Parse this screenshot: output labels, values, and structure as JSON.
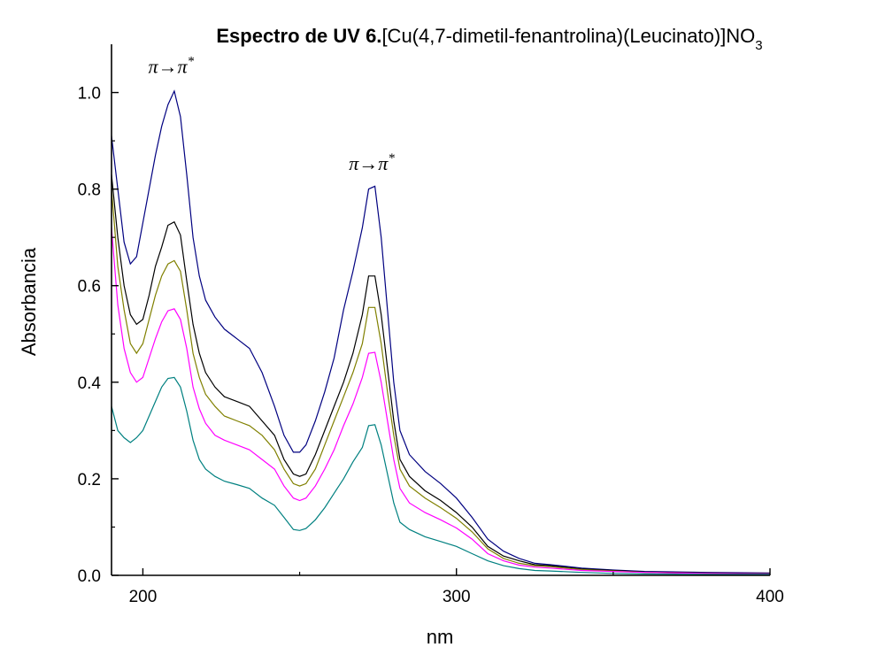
{
  "chart_data": {
    "type": "line",
    "title_bold": "Espectro de UV 6.",
    "title_rest": "[Cu(4,7-dimetil-fenantrolina)(Leucinato)]NO",
    "title_subscript": "3",
    "xlabel": "nm",
    "ylabel": "Absorbancia",
    "xlim": [
      190,
      400
    ],
    "ylim": [
      0,
      1.1
    ],
    "x_ticks": [
      200,
      300,
      400
    ],
    "y_ticks": [
      0.0,
      0.2,
      0.4,
      0.6,
      0.8,
      1.0
    ],
    "x_tick_labels": [
      "200",
      "300",
      "400"
    ],
    "y_tick_labels": [
      "0.0",
      "0.2",
      "0.4",
      "0.6",
      "0.8",
      "1.0"
    ],
    "grid": false,
    "annotations": [
      {
        "base": "π→π",
        "sup": "*",
        "x": 209,
        "y": 1.04
      },
      {
        "base": "π→π",
        "sup": "*",
        "x": 273,
        "y": 0.84
      }
    ],
    "series": [
      {
        "color": "#000080",
        "points": [
          [
            190,
            0.91
          ],
          [
            192,
            0.8
          ],
          [
            194,
            0.69
          ],
          [
            196,
            0.645
          ],
          [
            198,
            0.66
          ],
          [
            200,
            0.73
          ],
          [
            202,
            0.8
          ],
          [
            204,
            0.87
          ],
          [
            206,
            0.93
          ],
          [
            208,
            0.975
          ],
          [
            210,
            1.003
          ],
          [
            212,
            0.95
          ],
          [
            214,
            0.83
          ],
          [
            216,
            0.7
          ],
          [
            218,
            0.62
          ],
          [
            220,
            0.57
          ],
          [
            223,
            0.535
          ],
          [
            226,
            0.51
          ],
          [
            230,
            0.49
          ],
          [
            234,
            0.47
          ],
          [
            238,
            0.42
          ],
          [
            242,
            0.35
          ],
          [
            245,
            0.29
          ],
          [
            248,
            0.255
          ],
          [
            250,
            0.255
          ],
          [
            252,
            0.27
          ],
          [
            255,
            0.32
          ],
          [
            258,
            0.38
          ],
          [
            261,
            0.45
          ],
          [
            264,
            0.55
          ],
          [
            267,
            0.63
          ],
          [
            270,
            0.72
          ],
          [
            272,
            0.8
          ],
          [
            274,
            0.806
          ],
          [
            276,
            0.7
          ],
          [
            278,
            0.55
          ],
          [
            280,
            0.4
          ],
          [
            282,
            0.3
          ],
          [
            285,
            0.25
          ],
          [
            290,
            0.215
          ],
          [
            295,
            0.19
          ],
          [
            300,
            0.16
          ],
          [
            305,
            0.12
          ],
          [
            310,
            0.075
          ],
          [
            315,
            0.05
          ],
          [
            320,
            0.035
          ],
          [
            325,
            0.025
          ],
          [
            330,
            0.022
          ],
          [
            340,
            0.015
          ],
          [
            350,
            0.011
          ],
          [
            360,
            0.008
          ],
          [
            380,
            0.006
          ],
          [
            400,
            0.005
          ]
        ]
      },
      {
        "color": "#000000",
        "points": [
          [
            190,
            0.83
          ],
          [
            192,
            0.7
          ],
          [
            194,
            0.6
          ],
          [
            196,
            0.54
          ],
          [
            198,
            0.52
          ],
          [
            200,
            0.53
          ],
          [
            202,
            0.58
          ],
          [
            204,
            0.64
          ],
          [
            206,
            0.68
          ],
          [
            208,
            0.725
          ],
          [
            210,
            0.732
          ],
          [
            212,
            0.705
          ],
          [
            214,
            0.61
          ],
          [
            216,
            0.52
          ],
          [
            218,
            0.46
          ],
          [
            220,
            0.42
          ],
          [
            223,
            0.39
          ],
          [
            226,
            0.37
          ],
          [
            230,
            0.36
          ],
          [
            234,
            0.35
          ],
          [
            238,
            0.32
          ],
          [
            242,
            0.29
          ],
          [
            245,
            0.24
          ],
          [
            248,
            0.21
          ],
          [
            250,
            0.205
          ],
          [
            252,
            0.21
          ],
          [
            255,
            0.25
          ],
          [
            258,
            0.3
          ],
          [
            261,
            0.35
          ],
          [
            264,
            0.4
          ],
          [
            267,
            0.46
          ],
          [
            270,
            0.54
          ],
          [
            272,
            0.62
          ],
          [
            274,
            0.62
          ],
          [
            276,
            0.54
          ],
          [
            278,
            0.43
          ],
          [
            280,
            0.32
          ],
          [
            282,
            0.24
          ],
          [
            285,
            0.205
          ],
          [
            290,
            0.175
          ],
          [
            295,
            0.155
          ],
          [
            300,
            0.13
          ],
          [
            305,
            0.1
          ],
          [
            310,
            0.06
          ],
          [
            315,
            0.04
          ],
          [
            320,
            0.03
          ],
          [
            325,
            0.022
          ],
          [
            330,
            0.02
          ],
          [
            340,
            0.013
          ],
          [
            350,
            0.01
          ],
          [
            360,
            0.007
          ],
          [
            380,
            0.005
          ],
          [
            400,
            0.004
          ]
        ]
      },
      {
        "color": "#808000",
        "points": [
          [
            190,
            0.8
          ],
          [
            192,
            0.64
          ],
          [
            194,
            0.55
          ],
          [
            196,
            0.48
          ],
          [
            198,
            0.46
          ],
          [
            200,
            0.48
          ],
          [
            202,
            0.53
          ],
          [
            204,
            0.58
          ],
          [
            206,
            0.62
          ],
          [
            208,
            0.645
          ],
          [
            210,
            0.652
          ],
          [
            212,
            0.63
          ],
          [
            214,
            0.55
          ],
          [
            216,
            0.46
          ],
          [
            218,
            0.41
          ],
          [
            220,
            0.375
          ],
          [
            223,
            0.35
          ],
          [
            226,
            0.33
          ],
          [
            230,
            0.32
          ],
          [
            234,
            0.31
          ],
          [
            238,
            0.29
          ],
          [
            242,
            0.26
          ],
          [
            245,
            0.22
          ],
          [
            248,
            0.19
          ],
          [
            250,
            0.185
          ],
          [
            252,
            0.19
          ],
          [
            255,
            0.22
          ],
          [
            258,
            0.27
          ],
          [
            261,
            0.32
          ],
          [
            264,
            0.37
          ],
          [
            267,
            0.42
          ],
          [
            270,
            0.48
          ],
          [
            272,
            0.555
          ],
          [
            274,
            0.555
          ],
          [
            276,
            0.48
          ],
          [
            278,
            0.38
          ],
          [
            280,
            0.29
          ],
          [
            282,
            0.22
          ],
          [
            285,
            0.185
          ],
          [
            290,
            0.16
          ],
          [
            295,
            0.14
          ],
          [
            300,
            0.118
          ],
          [
            305,
            0.09
          ],
          [
            310,
            0.055
          ],
          [
            315,
            0.035
          ],
          [
            320,
            0.025
          ],
          [
            325,
            0.02
          ],
          [
            330,
            0.018
          ],
          [
            340,
            0.012
          ],
          [
            350,
            0.009
          ],
          [
            360,
            0.006
          ],
          [
            380,
            0.004
          ],
          [
            400,
            0.003
          ]
        ]
      },
      {
        "color": "#ff00ff",
        "points": [
          [
            190,
            0.72
          ],
          [
            192,
            0.56
          ],
          [
            194,
            0.47
          ],
          [
            196,
            0.42
          ],
          [
            198,
            0.4
          ],
          [
            200,
            0.41
          ],
          [
            202,
            0.45
          ],
          [
            204,
            0.49
          ],
          [
            206,
            0.525
          ],
          [
            208,
            0.548
          ],
          [
            210,
            0.552
          ],
          [
            212,
            0.53
          ],
          [
            214,
            0.47
          ],
          [
            216,
            0.39
          ],
          [
            218,
            0.345
          ],
          [
            220,
            0.315
          ],
          [
            223,
            0.29
          ],
          [
            226,
            0.28
          ],
          [
            230,
            0.27
          ],
          [
            234,
            0.26
          ],
          [
            238,
            0.24
          ],
          [
            242,
            0.22
          ],
          [
            245,
            0.185
          ],
          [
            248,
            0.16
          ],
          [
            250,
            0.155
          ],
          [
            252,
            0.16
          ],
          [
            255,
            0.185
          ],
          [
            258,
            0.22
          ],
          [
            261,
            0.26
          ],
          [
            264,
            0.31
          ],
          [
            267,
            0.355
          ],
          [
            270,
            0.41
          ],
          [
            272,
            0.46
          ],
          [
            274,
            0.462
          ],
          [
            276,
            0.4
          ],
          [
            278,
            0.32
          ],
          [
            280,
            0.24
          ],
          [
            282,
            0.18
          ],
          [
            285,
            0.15
          ],
          [
            290,
            0.13
          ],
          [
            295,
            0.115
          ],
          [
            300,
            0.098
          ],
          [
            305,
            0.075
          ],
          [
            310,
            0.045
          ],
          [
            315,
            0.03
          ],
          [
            320,
            0.021
          ],
          [
            325,
            0.017
          ],
          [
            330,
            0.015
          ],
          [
            340,
            0.01
          ],
          [
            350,
            0.008
          ],
          [
            360,
            0.006
          ],
          [
            380,
            0.004
          ],
          [
            400,
            0.003
          ]
        ]
      },
      {
        "color": "#008080",
        "points": [
          [
            190,
            0.35
          ],
          [
            192,
            0.3
          ],
          [
            194,
            0.285
          ],
          [
            196,
            0.275
          ],
          [
            198,
            0.285
          ],
          [
            200,
            0.3
          ],
          [
            202,
            0.33
          ],
          [
            204,
            0.36
          ],
          [
            206,
            0.39
          ],
          [
            208,
            0.408
          ],
          [
            210,
            0.41
          ],
          [
            212,
            0.39
          ],
          [
            214,
            0.34
          ],
          [
            216,
            0.28
          ],
          [
            218,
            0.24
          ],
          [
            220,
            0.22
          ],
          [
            223,
            0.205
          ],
          [
            226,
            0.195
          ],
          [
            230,
            0.188
          ],
          [
            234,
            0.18
          ],
          [
            238,
            0.16
          ],
          [
            242,
            0.145
          ],
          [
            245,
            0.12
          ],
          [
            248,
            0.095
          ],
          [
            250,
            0.093
          ],
          [
            252,
            0.097
          ],
          [
            255,
            0.115
          ],
          [
            258,
            0.14
          ],
          [
            261,
            0.17
          ],
          [
            264,
            0.2
          ],
          [
            267,
            0.235
          ],
          [
            270,
            0.265
          ],
          [
            272,
            0.31
          ],
          [
            274,
            0.312
          ],
          [
            276,
            0.27
          ],
          [
            278,
            0.21
          ],
          [
            280,
            0.15
          ],
          [
            282,
            0.11
          ],
          [
            285,
            0.095
          ],
          [
            290,
            0.08
          ],
          [
            295,
            0.07
          ],
          [
            300,
            0.06
          ],
          [
            305,
            0.045
          ],
          [
            310,
            0.03
          ],
          [
            315,
            0.02
          ],
          [
            320,
            0.014
          ],
          [
            325,
            0.01
          ],
          [
            330,
            0.009
          ],
          [
            340,
            0.006
          ],
          [
            350,
            0.004
          ],
          [
            360,
            0.003
          ],
          [
            380,
            0.002
          ],
          [
            400,
            0.002
          ]
        ]
      }
    ]
  }
}
